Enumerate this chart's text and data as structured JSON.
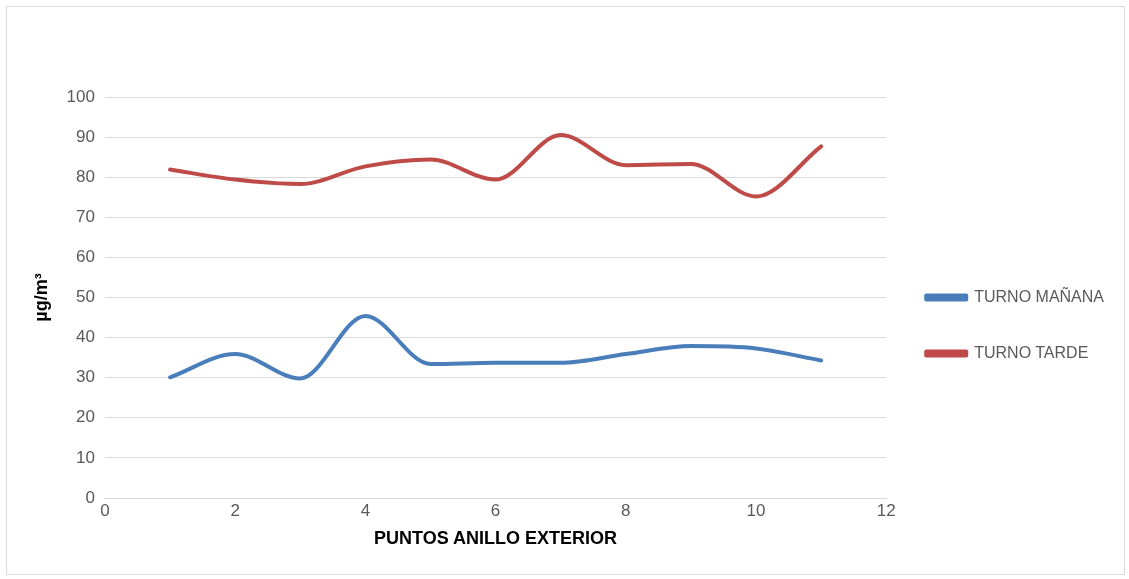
{
  "chart_data": {
    "type": "line",
    "xlabel": "PUNTOS ANILLO EXTERIOR",
    "ylabel": "µg/m³",
    "x": [
      1,
      2,
      3,
      4,
      5,
      6,
      7,
      8,
      9,
      10,
      11
    ],
    "series": [
      {
        "name": "TURNO MAÑANA",
        "color": "#4a7ebb",
        "values": [
          30.1,
          35.9,
          29.8,
          45.4,
          33.4,
          33.7,
          33.7,
          35.9,
          37.9,
          37.3,
          34.3
        ]
      },
      {
        "name": "TURNO TARDE",
        "color": "#be4b48",
        "values": [
          81.9,
          79.4,
          78.3,
          82.7,
          84.4,
          79.4,
          90.5,
          83,
          83.3,
          75.2,
          87.7
        ]
      }
    ],
    "xlim": [
      0,
      12
    ],
    "xticks": [
      0,
      2,
      4,
      6,
      8,
      10,
      12
    ],
    "ylim": [
      0,
      100
    ],
    "yticks": [
      0,
      10,
      20,
      30,
      40,
      50,
      60,
      70,
      80,
      90,
      100
    ],
    "grid": "y",
    "legend": "right",
    "marker": "none",
    "line_style": "solid"
  }
}
